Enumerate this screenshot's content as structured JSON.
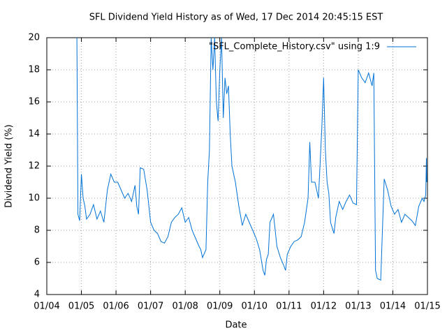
{
  "chart_data": {
    "type": "line",
    "title": "SFL Dividend Yield History as of Wed, 17 Dec 2014 20:45:15 EST",
    "x_label": "Date",
    "y_label": "Dividend Yield (%)",
    "xlim": [
      2004,
      2015
    ],
    "ylim": [
      4,
      20
    ],
    "xticks": [
      {
        "value": 2004,
        "label": "01/04"
      },
      {
        "value": 2005,
        "label": "01/05"
      },
      {
        "value": 2006,
        "label": "01/06"
      },
      {
        "value": 2007,
        "label": "01/07"
      },
      {
        "value": 2008,
        "label": "01/08"
      },
      {
        "value": 2009,
        "label": "01/09"
      },
      {
        "value": 2010,
        "label": "01/10"
      },
      {
        "value": 2011,
        "label": "01/11"
      },
      {
        "value": 2012,
        "label": "01/12"
      },
      {
        "value": 2013,
        "label": "01/13"
      },
      {
        "value": 2014,
        "label": "01/14"
      },
      {
        "value": 2015,
        "label": "01/15"
      }
    ],
    "yticks": [
      4,
      6,
      8,
      10,
      12,
      14,
      16,
      18,
      20
    ],
    "grid": true,
    "legend": "top right",
    "x": [
      2004.87,
      2004.9,
      2004.95,
      2005.0,
      2005.05,
      2005.1,
      2005.15,
      2005.25,
      2005.35,
      2005.45,
      2005.55,
      2005.65,
      2005.75,
      2005.85,
      2005.95,
      2006.05,
      2006.15,
      2006.25,
      2006.35,
      2006.45,
      2006.55,
      2006.6,
      2006.65,
      2006.7,
      2006.8,
      2006.9,
      2007.0,
      2007.1,
      2007.2,
      2007.3,
      2007.4,
      2007.5,
      2007.6,
      2007.7,
      2007.8,
      2007.9,
      2008.0,
      2008.1,
      2008.2,
      2008.3,
      2008.4,
      2008.45,
      2008.5,
      2008.6,
      2008.65,
      2008.7,
      2008.75,
      2008.8,
      2008.85,
      2008.9,
      2008.95,
      2009.0,
      2009.05,
      2009.1,
      2009.15,
      2009.2,
      2009.25,
      2009.3,
      2009.35,
      2009.45,
      2009.55,
      2009.65,
      2009.75,
      2009.85,
      2009.95,
      2010.05,
      2010.15,
      2010.25,
      2010.3,
      2010.35,
      2010.4,
      2010.45,
      2010.55,
      2010.65,
      2010.75,
      2010.85,
      2010.9,
      2010.95,
      2011.05,
      2011.15,
      2011.25,
      2011.35,
      2011.45,
      2011.55,
      2011.6,
      2011.65,
      2011.75,
      2011.85,
      2011.95,
      2012.0,
      2012.05,
      2012.1,
      2012.15,
      2012.2,
      2012.3,
      2012.35,
      2012.45,
      2012.55,
      2012.65,
      2012.75,
      2012.85,
      2012.95,
      2013.0,
      2013.1,
      2013.2,
      2013.3,
      2013.4,
      2013.45,
      2013.5,
      2013.55,
      2013.65,
      2013.75,
      2013.85,
      2013.95,
      2014.05,
      2014.15,
      2014.25,
      2014.35,
      2014.45,
      2014.55,
      2014.65,
      2014.75,
      2014.85,
      2014.9,
      2014.95,
      2014.97,
      2014.98
    ],
    "series": [
      {
        "name": "\"SFL_Complete_History.csv\" using 1:9",
        "color": "#0072d6",
        "values": [
          20,
          9,
          8.6,
          11.5,
          10,
          9.5,
          8.7,
          9,
          9.6,
          8.7,
          9.2,
          8.5,
          10.5,
          11.5,
          11,
          11,
          10.5,
          10,
          10.3,
          9.8,
          10.8,
          9.5,
          9,
          11.9,
          11.8,
          10.5,
          8.5,
          8,
          7.8,
          7.3,
          7.2,
          7.6,
          8.5,
          8.8,
          9,
          9.4,
          8.5,
          8.8,
          8,
          7.5,
          7,
          6.8,
          6.3,
          6.8,
          11,
          13,
          20,
          18,
          20,
          16,
          14.8,
          18,
          20,
          15,
          17.5,
          16.5,
          17,
          14,
          12,
          11,
          9.5,
          8.3,
          9,
          8.5,
          8,
          7.5,
          6.8,
          5.5,
          5.2,
          6.2,
          6.5,
          8.5,
          9,
          7,
          6.3,
          5.8,
          5.5,
          6.5,
          7,
          7.3,
          7.4,
          7.6,
          8.5,
          10,
          13.5,
          11,
          11,
          10,
          14.5,
          17.5,
          13,
          11,
          10.3,
          8.5,
          7.8,
          8.8,
          9.8,
          9.3,
          9.8,
          10.2,
          9.7,
          9.6,
          18,
          17.5,
          17.2,
          17.8,
          17,
          17.8,
          5.5,
          5,
          4.9,
          11.2,
          10.5,
          9.5,
          9,
          9.3,
          8.5,
          9,
          8.8,
          8.6,
          8.3,
          9.5,
          10,
          9.8,
          10.2,
          12.5,
          11
        ]
      }
    ]
  }
}
